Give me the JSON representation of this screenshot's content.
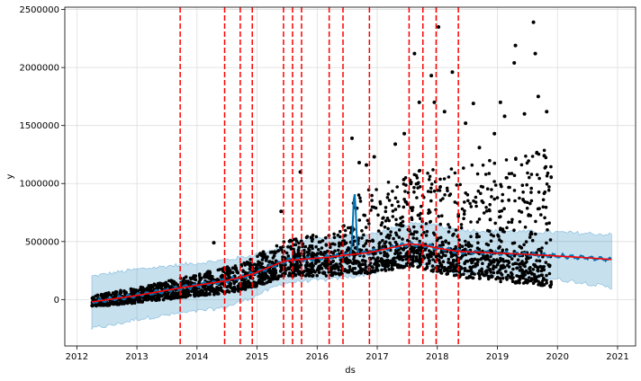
{
  "chart_data": {
    "type": "scatter",
    "title": "",
    "xlabel": "ds",
    "ylabel": "y",
    "xlim": [
      2011.8,
      2021.3
    ],
    "ylim": [
      -400000,
      2520000
    ],
    "grid": true,
    "x_ticks": [
      {
        "value": 2012,
        "label": "2012"
      },
      {
        "value": 2013,
        "label": "2013"
      },
      {
        "value": 2014,
        "label": "2014"
      },
      {
        "value": 2015,
        "label": "2015"
      },
      {
        "value": 2016,
        "label": "2016"
      },
      {
        "value": 2017,
        "label": "2017"
      },
      {
        "value": 2018,
        "label": "2018"
      },
      {
        "value": 2019,
        "label": "2019"
      },
      {
        "value": 2020,
        "label": "2020"
      },
      {
        "value": 2021,
        "label": "2021"
      }
    ],
    "y_ticks": [
      {
        "value": 0,
        "label": "0"
      },
      {
        "value": 500000,
        "label": "500000"
      },
      {
        "value": 1000000,
        "label": "1000000"
      },
      {
        "value": 1500000,
        "label": "1500000"
      },
      {
        "value": 2000000,
        "label": "2000000"
      },
      {
        "value": 2500000,
        "label": "2500000"
      }
    ],
    "observations_end": 2019.9,
    "forecast_end": 2020.9,
    "changepoints": [
      2013.72,
      2014.46,
      2014.72,
      2014.92,
      2015.44,
      2015.59,
      2015.74,
      2016.2,
      2016.43,
      2016.87,
      2017.53,
      2017.76,
      2017.98,
      2018.35
    ],
    "trend": {
      "x": [
        2012.25,
        2012.6,
        2013.0,
        2013.72,
        2014.46,
        2014.72,
        2014.92,
        2015.44,
        2015.59,
        2015.74,
        2016.2,
        2016.43,
        2016.87,
        2017.53,
        2017.76,
        2017.98,
        2018.35,
        2019.0,
        2019.5,
        2020.0,
        2020.5,
        2020.9
      ],
      "y": [
        -20000,
        5000,
        35000,
        100000,
        160000,
        190000,
        220000,
        330000,
        340000,
        345000,
        365000,
        380000,
        405000,
        480000,
        470000,
        445000,
        415000,
        400000,
        390000,
        375000,
        360000,
        345000
      ]
    },
    "upper_band": {
      "x": [
        2012.25,
        2012.6,
        2013.0,
        2013.72,
        2014.46,
        2014.92,
        2015.44,
        2015.74,
        2016.2,
        2016.87,
        2017.53,
        2017.98,
        2018.35,
        2019.0,
        2019.9,
        2020.5,
        2020.9
      ],
      "y": [
        200000,
        230000,
        260000,
        300000,
        340000,
        380000,
        460000,
        510000,
        540000,
        560000,
        650000,
        640000,
        600000,
        590000,
        580000,
        570000,
        560000
      ]
    },
    "lower_band": {
      "x": [
        2012.25,
        2012.6,
        2013.0,
        2013.72,
        2014.46,
        2014.92,
        2015.44,
        2015.74,
        2016.2,
        2016.87,
        2017.53,
        2017.98,
        2018.35,
        2019.0,
        2019.9,
        2020.5,
        2020.9
      ],
      "y": [
        -250000,
        -220000,
        -170000,
        -120000,
        -70000,
        20000,
        140000,
        160000,
        170000,
        220000,
        320000,
        280000,
        220000,
        200000,
        180000,
        140000,
        100000
      ]
    },
    "outliers": [
      {
        "x": 2014.28,
        "y": 490000
      },
      {
        "x": 2015.4,
        "y": 760000
      },
      {
        "x": 2015.72,
        "y": 1100000
      },
      {
        "x": 2016.58,
        "y": 1390000
      },
      {
        "x": 2016.7,
        "y": 1180000
      },
      {
        "x": 2016.82,
        "y": 1160000
      },
      {
        "x": 2017.3,
        "y": 1340000
      },
      {
        "x": 2017.62,
        "y": 2120000
      },
      {
        "x": 2017.9,
        "y": 1930000
      },
      {
        "x": 2018.02,
        "y": 2350000
      },
      {
        "x": 2017.95,
        "y": 1700000
      },
      {
        "x": 2018.12,
        "y": 1620000
      },
      {
        "x": 2018.25,
        "y": 1960000
      },
      {
        "x": 2018.47,
        "y": 1520000
      },
      {
        "x": 2018.6,
        "y": 1690000
      },
      {
        "x": 2018.95,
        "y": 1430000
      },
      {
        "x": 2019.12,
        "y": 1580000
      },
      {
        "x": 2019.28,
        "y": 2040000
      },
      {
        "x": 2019.3,
        "y": 2190000
      },
      {
        "x": 2019.45,
        "y": 1600000
      },
      {
        "x": 2019.6,
        "y": 2390000
      },
      {
        "x": 2019.63,
        "y": 2120000
      },
      {
        "x": 2019.68,
        "y": 1750000
      },
      {
        "x": 2019.82,
        "y": 1620000
      },
      {
        "x": 2019.78,
        "y": 1240000
      },
      {
        "x": 2017.7,
        "y": 1700000
      },
      {
        "x": 2017.45,
        "y": 1430000
      },
      {
        "x": 2016.95,
        "y": 1230000
      },
      {
        "x": 2018.7,
        "y": 1310000
      },
      {
        "x": 2019.05,
        "y": 1700000
      }
    ],
    "colors": {
      "points": "#000000",
      "forecast_line": "#0072B2",
      "uncertainty_band": "#0072B2",
      "trend": "#ff0000",
      "changepoint": "#ff0000",
      "grid": "#dddddd",
      "axes": "#000000"
    }
  }
}
